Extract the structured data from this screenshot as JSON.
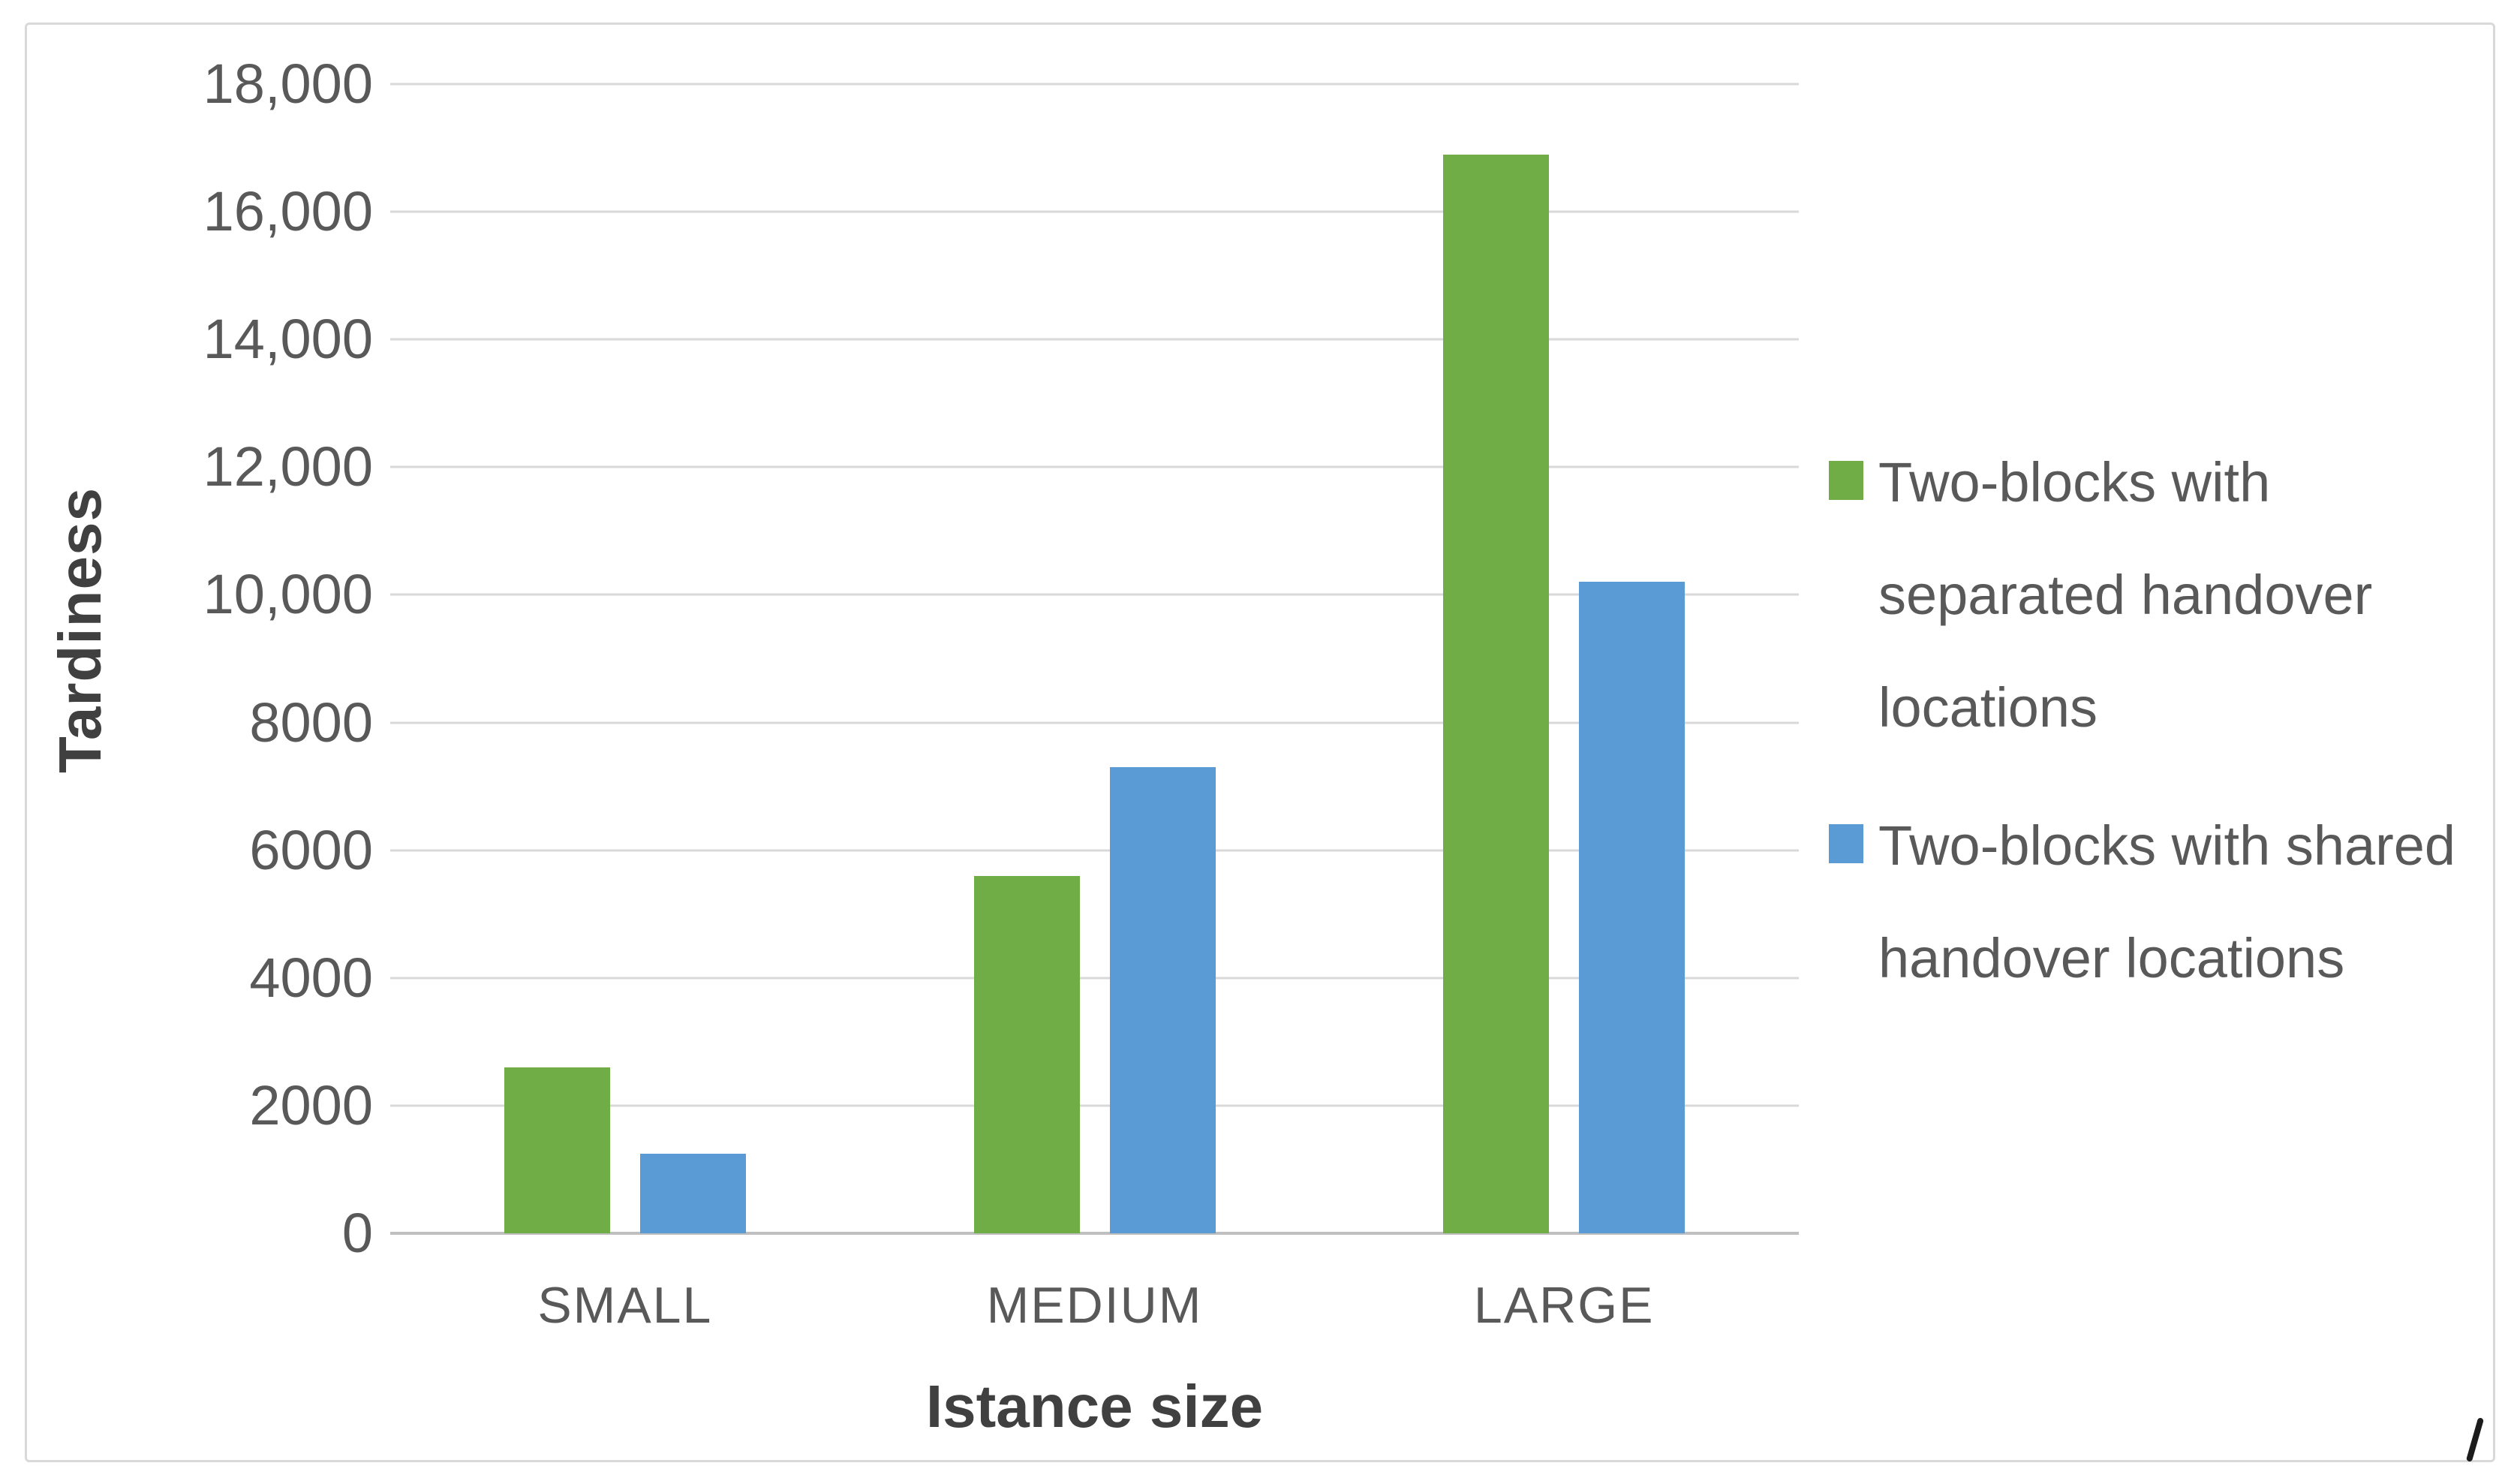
{
  "chart_data": {
    "type": "bar",
    "title": "",
    "categories": [
      "SMALL",
      "MEDIUM",
      "LARGE"
    ],
    "series": [
      {
        "name": "Two-blocks with separated handover locations",
        "key": "separated",
        "color": "#70AD47",
        "values": [
          2600,
          5600,
          16900
        ]
      },
      {
        "name": "Two-blocks with shared handover locations",
        "key": "shared",
        "color": "#5B9BD5",
        "values": [
          1250,
          7300,
          10200
        ]
      }
    ],
    "xlabel": "Istance size",
    "ylabel": "Tardiness",
    "ylim": [
      0,
      18000
    ],
    "ytick_interval": 2000,
    "ytick_labels": [
      "0",
      "2000",
      "4000",
      "6000",
      "8000",
      "10,000",
      "12,000",
      "14,000",
      "16,000",
      "18,000"
    ],
    "grid": "horizontal",
    "legend_position": "right",
    "gridline_color": "#D9D9D9",
    "axis_line_color": "#BFBFBF",
    "tick_text_color": "#595959",
    "axis_title_color": "#404040"
  }
}
